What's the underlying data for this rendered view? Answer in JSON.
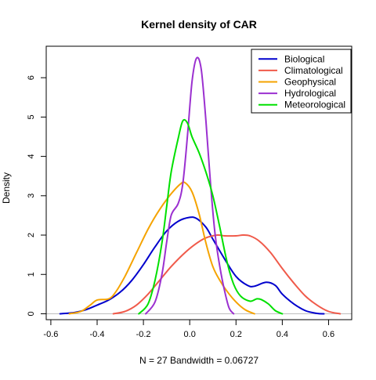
{
  "chart_data": {
    "type": "line",
    "title": "Kernel density of CAR",
    "xlabel": "N = 27   Bandwidth = 0.06727",
    "ylabel": "Density",
    "xlim": [
      -0.62,
      0.7
    ],
    "ylim": [
      -0.15,
      6.8
    ],
    "x_ticks": [
      -0.6,
      -0.4,
      -0.2,
      0.0,
      0.2,
      0.4,
      0.6
    ],
    "x_tick_labels": [
      "-0.6",
      "-0.4",
      "-0.2",
      "0.0",
      "0.2",
      "0.4",
      "0.6"
    ],
    "y_ticks": [
      0,
      1,
      2,
      3,
      4,
      5,
      6
    ],
    "y_tick_labels": [
      "0",
      "1",
      "2",
      "3",
      "4",
      "5",
      "6"
    ],
    "grid": false,
    "legend_position": "top-right",
    "baseline_color": "#bebebe",
    "series": [
      {
        "name": "Biological",
        "color": "#0000cd",
        "points": [
          [
            -0.56,
            0.0
          ],
          [
            -0.5,
            0.03
          ],
          [
            -0.45,
            0.1
          ],
          [
            -0.4,
            0.22
          ],
          [
            -0.35,
            0.35
          ],
          [
            -0.3,
            0.55
          ],
          [
            -0.25,
            0.85
          ],
          [
            -0.2,
            1.25
          ],
          [
            -0.15,
            1.7
          ],
          [
            -0.1,
            2.1
          ],
          [
            -0.05,
            2.35
          ],
          [
            0.0,
            2.45
          ],
          [
            0.03,
            2.42
          ],
          [
            0.07,
            2.2
          ],
          [
            0.1,
            1.9
          ],
          [
            0.15,
            1.4
          ],
          [
            0.2,
            0.95
          ],
          [
            0.25,
            0.72
          ],
          [
            0.28,
            0.7
          ],
          [
            0.33,
            0.8
          ],
          [
            0.37,
            0.72
          ],
          [
            0.4,
            0.5
          ],
          [
            0.45,
            0.25
          ],
          [
            0.5,
            0.08
          ],
          [
            0.55,
            0.01
          ],
          [
            0.58,
            0.0
          ]
        ]
      },
      {
        "name": "Climatological",
        "color": "#f05a4a",
        "points": [
          [
            -0.33,
            0.0
          ],
          [
            -0.28,
            0.06
          ],
          [
            -0.23,
            0.22
          ],
          [
            -0.18,
            0.5
          ],
          [
            -0.13,
            0.85
          ],
          [
            -0.08,
            1.2
          ],
          [
            -0.03,
            1.5
          ],
          [
            0.02,
            1.75
          ],
          [
            0.07,
            1.93
          ],
          [
            0.12,
            2.0
          ],
          [
            0.15,
            1.98
          ],
          [
            0.2,
            1.98
          ],
          [
            0.23,
            2.0
          ],
          [
            0.26,
            1.98
          ],
          [
            0.3,
            1.85
          ],
          [
            0.35,
            1.55
          ],
          [
            0.4,
            1.15
          ],
          [
            0.45,
            0.78
          ],
          [
            0.5,
            0.45
          ],
          [
            0.55,
            0.22
          ],
          [
            0.6,
            0.06
          ],
          [
            0.65,
            0.0
          ]
        ]
      },
      {
        "name": "Geophysical",
        "color": "#f5a300",
        "points": [
          [
            -0.52,
            0.0
          ],
          [
            -0.47,
            0.06
          ],
          [
            -0.43,
            0.22
          ],
          [
            -0.4,
            0.35
          ],
          [
            -0.35,
            0.38
          ],
          [
            -0.32,
            0.55
          ],
          [
            -0.28,
            0.95
          ],
          [
            -0.23,
            1.55
          ],
          [
            -0.18,
            2.15
          ],
          [
            -0.13,
            2.65
          ],
          [
            -0.08,
            3.05
          ],
          [
            -0.04,
            3.3
          ],
          [
            -0.02,
            3.33
          ],
          [
            0.01,
            3.1
          ],
          [
            0.04,
            2.55
          ],
          [
            0.07,
            1.8
          ],
          [
            0.1,
            1.2
          ],
          [
            0.13,
            0.85
          ],
          [
            0.16,
            0.58
          ],
          [
            0.2,
            0.3
          ],
          [
            0.24,
            0.1
          ],
          [
            0.28,
            0.0
          ]
        ]
      },
      {
        "name": "Hydrological",
        "color": "#9b30d0",
        "points": [
          [
            -0.19,
            0.0
          ],
          [
            -0.15,
            0.3
          ],
          [
            -0.12,
            1.0
          ],
          [
            -0.1,
            1.8
          ],
          [
            -0.08,
            2.5
          ],
          [
            -0.05,
            2.8
          ],
          [
            -0.03,
            3.3
          ],
          [
            -0.01,
            4.5
          ],
          [
            0.01,
            5.9
          ],
          [
            0.03,
            6.5
          ],
          [
            0.05,
            6.2
          ],
          [
            0.07,
            4.9
          ],
          [
            0.09,
            3.3
          ],
          [
            0.11,
            2.0
          ],
          [
            0.13,
            1.2
          ],
          [
            0.15,
            0.6
          ],
          [
            0.17,
            0.15
          ],
          [
            0.19,
            0.0
          ]
        ]
      },
      {
        "name": "Meteorological",
        "color": "#00e000",
        "points": [
          [
            -0.22,
            0.0
          ],
          [
            -0.18,
            0.25
          ],
          [
            -0.15,
            0.85
          ],
          [
            -0.12,
            1.8
          ],
          [
            -0.1,
            2.7
          ],
          [
            -0.08,
            3.6
          ],
          [
            -0.05,
            4.45
          ],
          [
            -0.03,
            4.9
          ],
          [
            -0.01,
            4.85
          ],
          [
            0.01,
            4.5
          ],
          [
            0.04,
            4.1
          ],
          [
            0.07,
            3.6
          ],
          [
            0.1,
            3.0
          ],
          [
            0.13,
            2.2
          ],
          [
            0.16,
            1.35
          ],
          [
            0.19,
            0.75
          ],
          [
            0.22,
            0.45
          ],
          [
            0.26,
            0.32
          ],
          [
            0.29,
            0.38
          ],
          [
            0.31,
            0.36
          ],
          [
            0.34,
            0.25
          ],
          [
            0.37,
            0.08
          ],
          [
            0.4,
            0.0
          ]
        ]
      }
    ]
  }
}
